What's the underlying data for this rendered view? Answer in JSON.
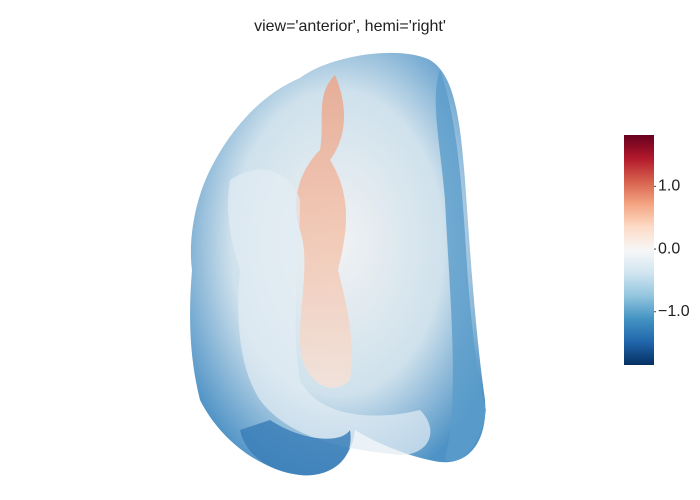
{
  "chart_data": {
    "type": "mesh3d",
    "title": "view='anterior', hemi='right'",
    "colorscale": [
      "#053061",
      "#2166ac",
      "#4393c3",
      "#92c5de",
      "#d1e5f0",
      "#f7f7f7",
      "#fddbc7",
      "#f4a582",
      "#d6604d",
      "#b2182b",
      "#67001f"
    ],
    "colorbar": {
      "range": [
        -1.85,
        1.82
      ],
      "ticks": [
        {
          "value": -1,
          "label": "−1.0"
        },
        {
          "value": 0,
          "label": "0.0"
        },
        {
          "value": 1,
          "label": "1.0"
        }
      ]
    }
  }
}
